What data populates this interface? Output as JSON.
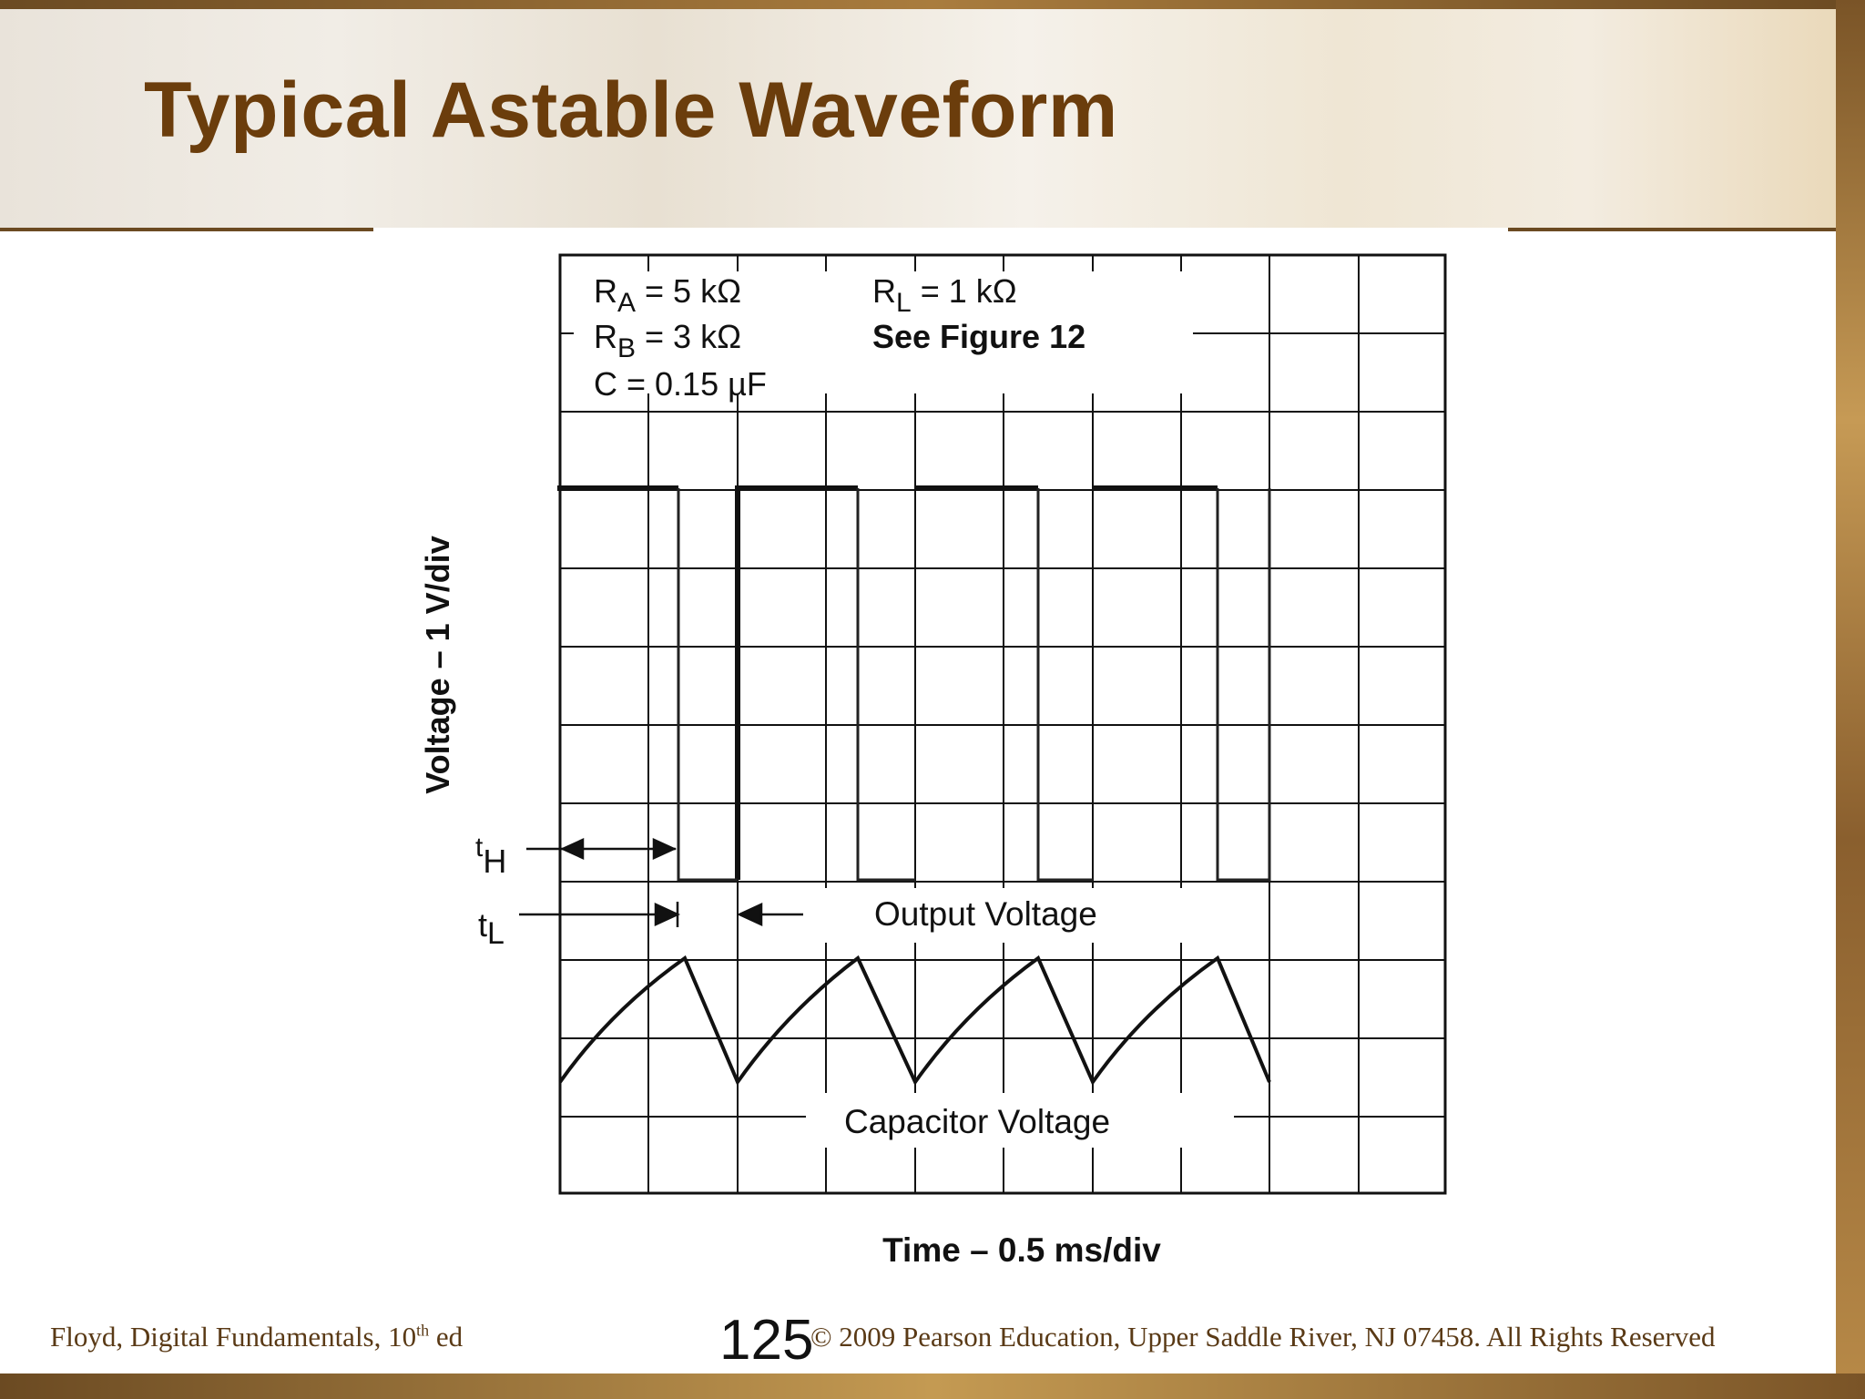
{
  "slide": {
    "title": "Typical Astable Waveform",
    "page_number": "125",
    "footer_left_main": "Floyd, Digital Fundamentals, 10",
    "footer_left_sup": "th",
    "footer_left_end": " ed",
    "footer_right": "© 2009 Pearson Education, Upper Saddle River, NJ 07458. All Rights Reserved",
    "accent_color": "#6b3d0c"
  },
  "diagram": {
    "params": {
      "ra": {
        "main": "R",
        "sub": "A",
        "value": " = 5 kΩ"
      },
      "rb": {
        "main": "R",
        "sub": "B",
        "value": " = 3 kΩ"
      },
      "c": "C = 0.15 µF",
      "rl": {
        "main": "R",
        "sub": "L",
        "value": " = 1 kΩ"
      },
      "see": "See Figure 12"
    },
    "labels": {
      "output_voltage": "Output Voltage",
      "capacitor_voltage": "Capacitor Voltage",
      "y_axis": "Voltage – 1 V/div",
      "x_axis": "Time – 0.5 ms/div",
      "th_main": "t",
      "th_sub": "H",
      "tl_main": "t",
      "tl_sub": "L"
    },
    "icons": {
      "th_arrows": "double-arrow-icon",
      "tl_arrows": "converging-arrows-icon"
    }
  }
}
